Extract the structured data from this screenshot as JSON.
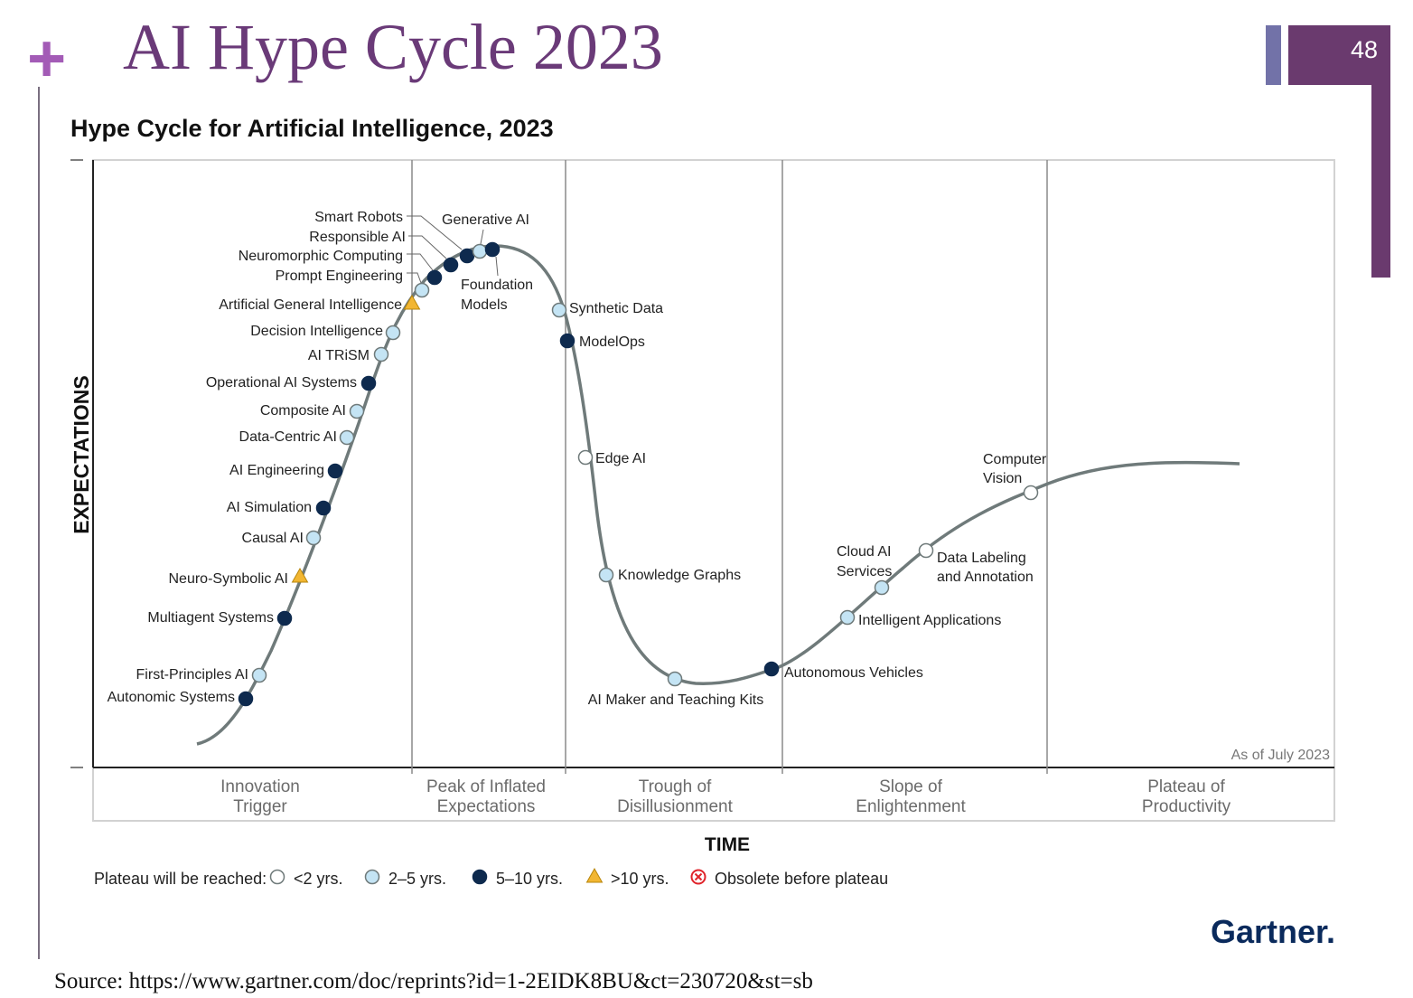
{
  "slide": {
    "plus_symbol": "+",
    "title": "AI Hype Cycle 2023",
    "page_number": "48",
    "source": "Source: https://www.gartner.com/doc/reprints?id=1-2EIDK8BU&ct=230720&st=sb",
    "colors": {
      "title": "#6a3a78",
      "plus": "#a35bb6",
      "accent_bar": "#6a3a6e",
      "accent_bar_small": "#7272a8"
    }
  },
  "chart_data": {
    "type": "hype_cycle",
    "title": "Hype Cycle for Artificial Intelligence, 2023",
    "xlabel": "TIME",
    "ylabel": "EXPECTATIONS",
    "as_of": "As of July 2023",
    "brand": "Gartner.",
    "phases": [
      {
        "lines": [
          "Innovation",
          "Trigger"
        ]
      },
      {
        "lines": [
          "Peak of Inflated",
          "Expectations"
        ]
      },
      {
        "lines": [
          "Trough of",
          "Disillusionment"
        ]
      },
      {
        "lines": [
          "Slope of",
          "Enlightenment"
        ]
      },
      {
        "lines": [
          "Plateau of",
          "Productivity"
        ]
      }
    ],
    "legend": {
      "title": "Plateau will be reached:",
      "items": [
        {
          "key": "lt2",
          "label": "<2 yrs."
        },
        {
          "key": "2to5",
          "label": "2–5 yrs."
        },
        {
          "key": "5to10",
          "label": "5–10 yrs."
        },
        {
          "key": "gt10",
          "label": ">10 yrs."
        },
        {
          "key": "obsolete",
          "label": "Obsolete before plateau"
        }
      ]
    },
    "marker_colors": {
      "lt2": "#ffffff",
      "2to5": "#c4e4f4",
      "5to10": "#0e2a4e",
      "gt10": "#f2b632",
      "obsolete": "#e0242b"
    },
    "technologies": [
      {
        "name": "Autonomic Systems",
        "phase": "Innovation Trigger",
        "plateau": "5to10"
      },
      {
        "name": "First-Principles AI",
        "phase": "Innovation Trigger",
        "plateau": "2to5"
      },
      {
        "name": "Multiagent Systems",
        "phase": "Innovation Trigger",
        "plateau": "5to10"
      },
      {
        "name": "Neuro-Symbolic AI",
        "phase": "Innovation Trigger",
        "plateau": "gt10"
      },
      {
        "name": "Causal AI",
        "phase": "Innovation Trigger",
        "plateau": "2to5"
      },
      {
        "name": "AI Simulation",
        "phase": "Innovation Trigger",
        "plateau": "5to10"
      },
      {
        "name": "AI Engineering",
        "phase": "Innovation Trigger",
        "plateau": "5to10"
      },
      {
        "name": "Data-Centric AI",
        "phase": "Innovation Trigger",
        "plateau": "2to5"
      },
      {
        "name": "Composite AI",
        "phase": "Innovation Trigger",
        "plateau": "2to5"
      },
      {
        "name": "Operational AI Systems",
        "phase": "Innovation Trigger",
        "plateau": "5to10"
      },
      {
        "name": "AI TRiSM",
        "phase": "Innovation Trigger",
        "plateau": "2to5"
      },
      {
        "name": "Decision Intelligence",
        "phase": "Innovation Trigger",
        "plateau": "2to5"
      },
      {
        "name": "Artificial General Intelligence",
        "phase": "Innovation Trigger",
        "plateau": "gt10"
      },
      {
        "name": "Prompt Engineering",
        "phase": "Peak of Inflated Expectations",
        "plateau": "2to5"
      },
      {
        "name": "Neuromorphic Computing",
        "phase": "Peak of Inflated Expectations",
        "plateau": "5to10"
      },
      {
        "name": "Responsible AI",
        "phase": "Peak of Inflated Expectations",
        "plateau": "5to10"
      },
      {
        "name": "Smart Robots",
        "phase": "Peak of Inflated Expectations",
        "plateau": "5to10"
      },
      {
        "name": "Generative AI",
        "phase": "Peak of Inflated Expectations",
        "plateau": "2to5"
      },
      {
        "name": "Foundation Models",
        "phase": "Peak of Inflated Expectations",
        "plateau": "5to10"
      },
      {
        "name": "Synthetic Data",
        "phase": "Trough of Disillusionment",
        "plateau": "2to5"
      },
      {
        "name": "ModelOps",
        "phase": "Trough of Disillusionment",
        "plateau": "5to10"
      },
      {
        "name": "Edge AI",
        "phase": "Trough of Disillusionment",
        "plateau": "lt2"
      },
      {
        "name": "Knowledge Graphs",
        "phase": "Trough of Disillusionment",
        "plateau": "2to5"
      },
      {
        "name": "AI Maker and Teaching Kits",
        "phase": "Trough of Disillusionment",
        "plateau": "2to5"
      },
      {
        "name": "Autonomous Vehicles",
        "phase": "Slope of Enlightenment",
        "plateau": "5to10"
      },
      {
        "name": "Intelligent Applications",
        "phase": "Slope of Enlightenment",
        "plateau": "2to5"
      },
      {
        "name": "Cloud AI Services",
        "phase": "Slope of Enlightenment",
        "plateau": "2to5"
      },
      {
        "name": "Data Labeling and Annotation",
        "phase": "Slope of Enlightenment",
        "plateau": "lt2"
      },
      {
        "name": "Computer Vision",
        "phase": "Slope of Enlightenment",
        "plateau": "lt2"
      }
    ]
  }
}
